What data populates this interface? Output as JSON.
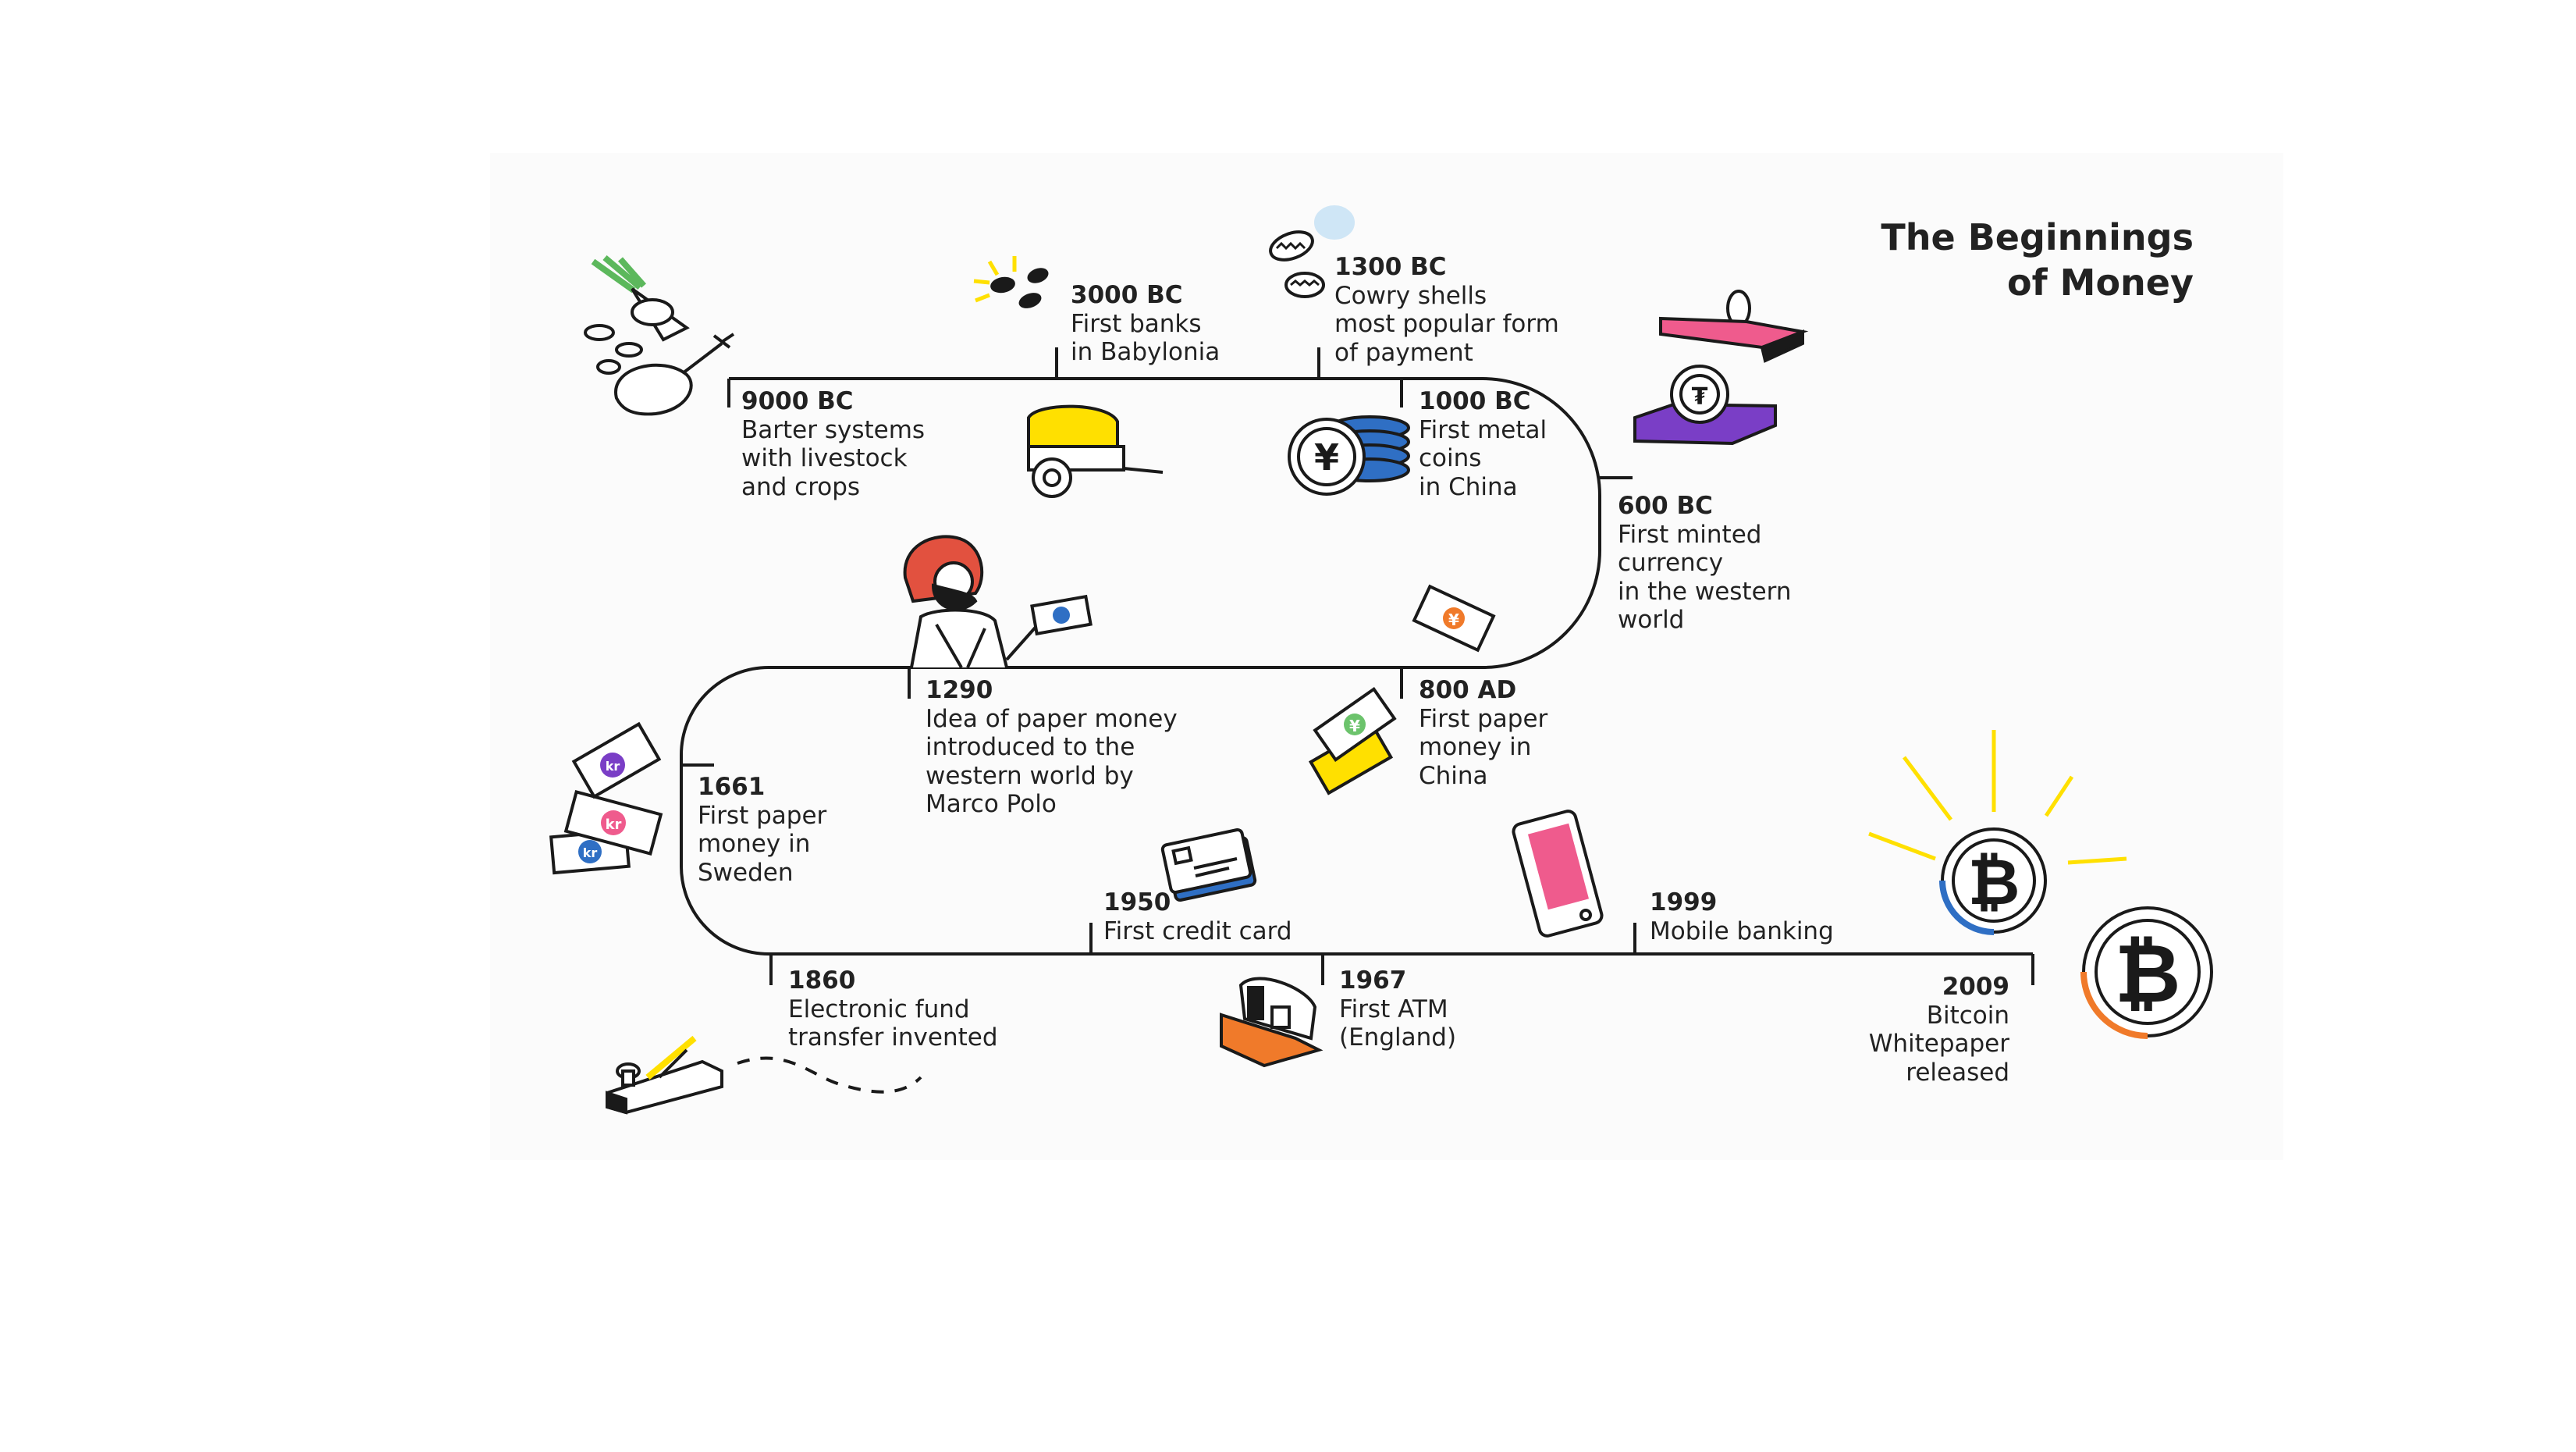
{
  "title": {
    "line1": "The Beginnings",
    "line2": "of Money"
  },
  "events": [
    {
      "year": "9000 BC",
      "lines": [
        "Barter systems",
        "with livestock",
        "and crops"
      ],
      "icon": "barter-food-icon"
    },
    {
      "year": "3000 BC",
      "lines": [
        "First banks",
        "in Babylonia"
      ],
      "icon": "grain-seeds-icon"
    },
    {
      "year": "1300 BC",
      "lines": [
        "Cowry shells",
        "most popular form",
        "of payment"
      ],
      "icon": "cowry-shells-icon"
    },
    {
      "year": "1000 BC",
      "lines": [
        "First metal",
        "coins",
        "in China"
      ],
      "icon": "yuan-coins-icon"
    },
    {
      "year": "600 BC",
      "lines": [
        "First minted",
        "currency",
        "in the western",
        "world"
      ],
      "icon": "coin-minting-press-icon"
    },
    {
      "year": "800 AD",
      "lines": [
        "First paper",
        "money in",
        "China"
      ],
      "icon": "yuan-banknote-icon"
    },
    {
      "year": "1290",
      "lines": [
        "Idea of paper money",
        "introduced to the",
        "western world by",
        "Marco Polo"
      ],
      "icon": "marco-polo-icon"
    },
    {
      "year": "1661",
      "lines": [
        "First paper",
        "money in",
        "Sweden"
      ],
      "icon": "krona-banknotes-icon"
    },
    {
      "year": "1860",
      "lines": [
        "Electronic fund",
        "transfer invented"
      ],
      "icon": "telegraph-key-icon"
    },
    {
      "year": "1950",
      "lines": [
        "First credit card"
      ],
      "icon": "credit-card-icon"
    },
    {
      "year": "1967",
      "lines": [
        "First ATM",
        "(England)"
      ],
      "icon": "atm-icon"
    },
    {
      "year": "1999",
      "lines": [
        "Mobile banking"
      ],
      "icon": "mobile-phone-icon"
    },
    {
      "year": "2009",
      "lines": [
        "Bitcoin",
        "Whitepaper",
        "released"
      ],
      "icon": "bitcoin-coin-icon"
    }
  ],
  "colors": {
    "line": "#1a1a1a",
    "yellow": "#ffe000",
    "pink": "#ef5b8d",
    "blue": "#2f6fc4",
    "purple": "#7a3ec6",
    "orange": "#f07a2a",
    "green": "#6cc36c",
    "red": "#e2513f"
  }
}
